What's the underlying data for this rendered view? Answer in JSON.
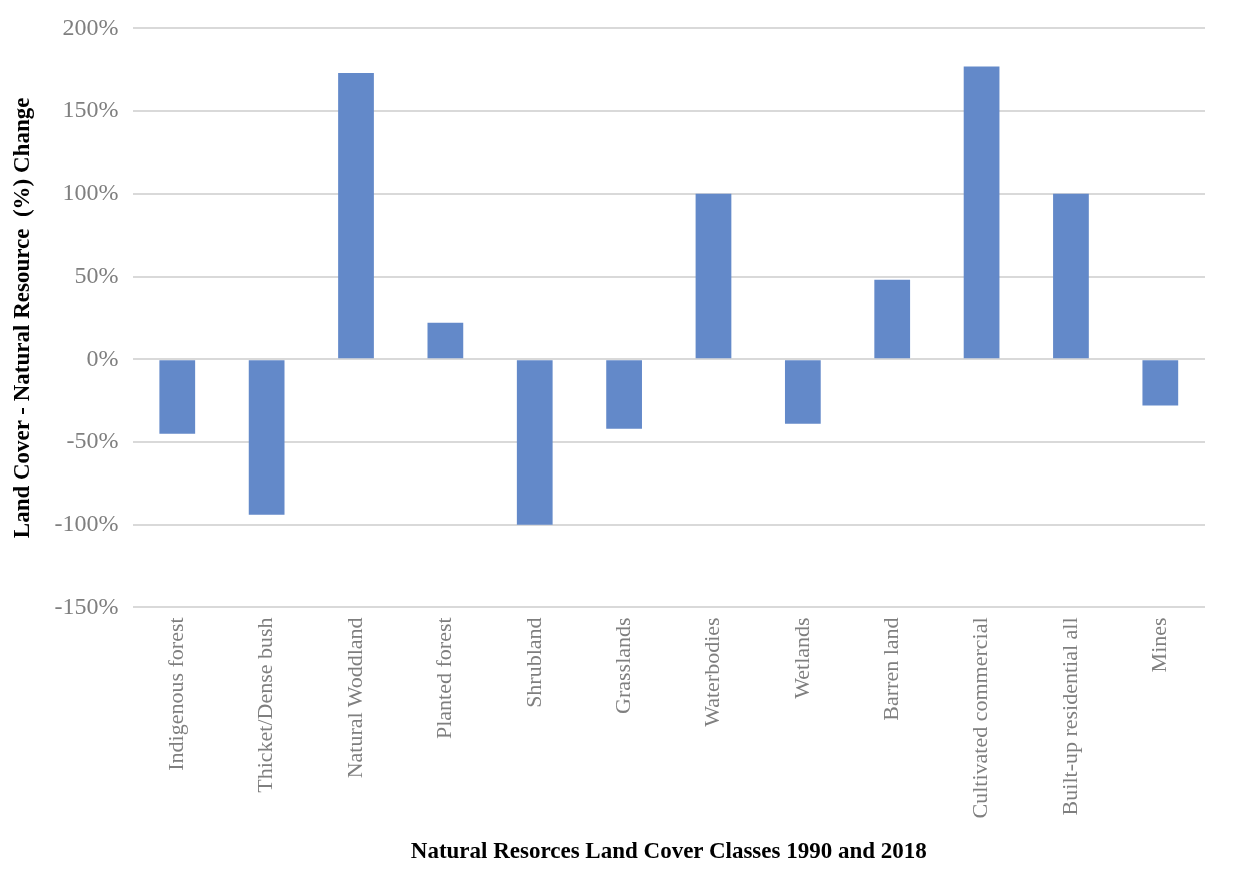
{
  "chart_data": {
    "type": "bar",
    "xlabel": "Natural Resorces Land Cover Classes 1990 and 2018",
    "ylabel": "Land Cover - Natural Resource  (%) Change",
    "categories": [
      "Indigenous forest",
      "Thicket/Dense bush",
      "Natural Woddland",
      "Planted forest",
      "Shrubland",
      "Grasslands",
      "Waterbodies",
      "Wetlands",
      "Barren land",
      "Cultivated commercial",
      "Built-up residential all",
      "Mines"
    ],
    "values": [
      -45,
      -94,
      173,
      22,
      -100,
      -42,
      100,
      -39,
      48,
      177,
      100,
      -28
    ],
    "color": "#6389c9",
    "ylim": [
      -150,
      200
    ],
    "yticks": [
      {
        "value": -150,
        "label": "-150%"
      },
      {
        "value": -100,
        "label": "-100%"
      },
      {
        "value": -50,
        "label": "-50%"
      },
      {
        "value": 0,
        "label": "0%"
      },
      {
        "value": 50,
        "label": "50%"
      },
      {
        "value": 100,
        "label": "100%"
      },
      {
        "value": 150,
        "label": "150%"
      },
      {
        "value": 200,
        "label": "200%"
      }
    ],
    "grid": "y"
  }
}
